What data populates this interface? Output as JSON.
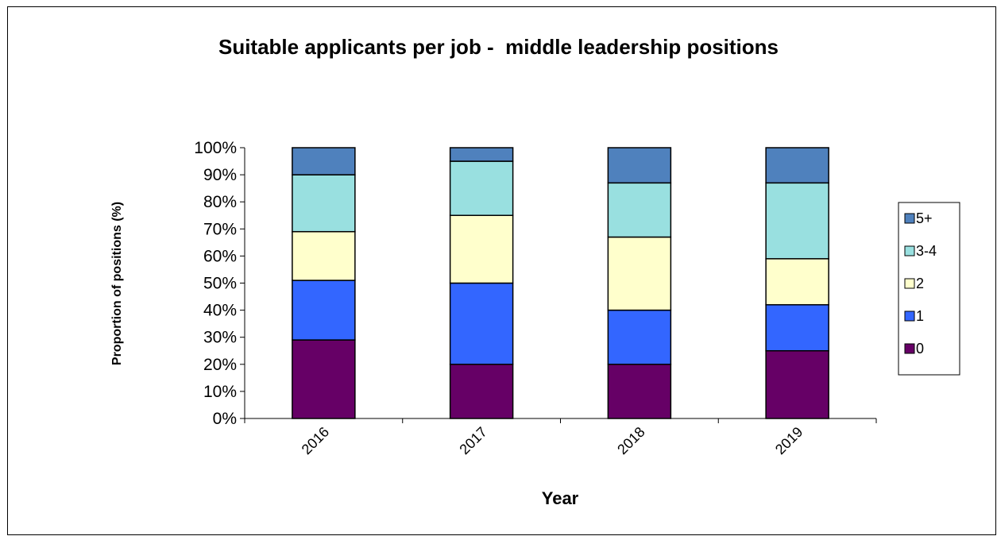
{
  "chart_data": {
    "type": "bar",
    "stacked": true,
    "normalized": true,
    "title": "Suitable applicants per job -  middle leadership positions",
    "xlabel": "Year",
    "ylabel": "Proportion of positions (%)",
    "categories": [
      "2016",
      "2017",
      "2018",
      "2019"
    ],
    "ylim": [
      0,
      100
    ],
    "yticks": [
      "0%",
      "10%",
      "20%",
      "30%",
      "40%",
      "50%",
      "60%",
      "70%",
      "80%",
      "90%",
      "100%"
    ],
    "series": [
      {
        "name": "0",
        "color": "#660066",
        "values": [
          29,
          20,
          20,
          25
        ]
      },
      {
        "name": "1",
        "color": "#3366FF",
        "values": [
          22,
          30,
          20,
          17
        ]
      },
      {
        "name": "2",
        "color": "#FFFFCC",
        "values": [
          18,
          25,
          27,
          17
        ]
      },
      {
        "name": "3-4",
        "color": "#99E0E0",
        "values": [
          21,
          20,
          20,
          28
        ]
      },
      {
        "name": "5+",
        "color": "#4F81BD",
        "values": [
          10,
          5,
          13,
          13
        ]
      }
    ],
    "legend_position": "right",
    "grid": false
  }
}
